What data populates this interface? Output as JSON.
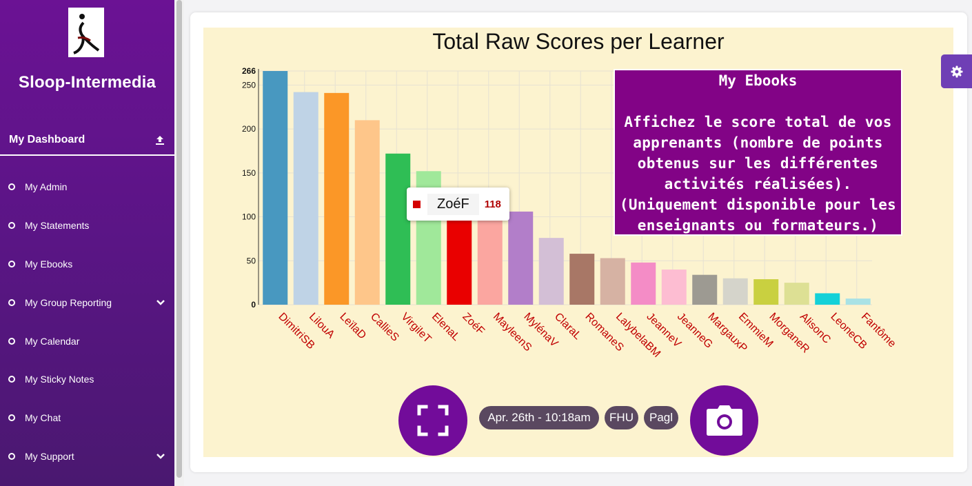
{
  "sidebar": {
    "brand": "Sloop-Intermedia",
    "dashboard_label": "My Dashboard",
    "items": [
      {
        "label": "My Admin",
        "chevron": false
      },
      {
        "label": "My Statements",
        "chevron": false
      },
      {
        "label": "My Ebooks",
        "chevron": false
      },
      {
        "label": "My Group Reporting",
        "chevron": true
      },
      {
        "label": "My Calendar",
        "chevron": false
      },
      {
        "label": "My Sticky Notes",
        "chevron": false
      },
      {
        "label": "My Chat",
        "chevron": false
      },
      {
        "label": "My Support",
        "chevron": true
      }
    ]
  },
  "info_panel": {
    "title": "My Ebooks",
    "body": "Affichez le score total de vos apprenants (nombre de points obtenus sur les différentes activités réalisées). (Uniquement disponible pour les enseignants ou formateurs.)"
  },
  "tooltip": {
    "name": "ZoéF",
    "value": "118",
    "color": "#d40000"
  },
  "controls": {
    "date": "Apr. 26th - 10:18am",
    "tag1": "FHU",
    "tag2": "Pagl"
  },
  "chart_data": {
    "type": "bar",
    "title": "Total Raw Scores per Learner",
    "xlabel": "",
    "ylabel": "",
    "ylim": [
      0,
      266
    ],
    "yticks": [
      0,
      50,
      100,
      150,
      200,
      250,
      266
    ],
    "grid": true,
    "categories": [
      "DimitriSB",
      "LilouA",
      "LeïlaD",
      "CallieS",
      "VirgileT",
      "ElenaL",
      "ZoéF",
      "MayleenS",
      "MylénaV",
      "ClaraL",
      "RomaneS",
      "LalybelaBM",
      "JeanneV",
      "JeanneG",
      "MargauxP",
      "EmmieM",
      "MorganeR",
      "AlisonC",
      "LeoneCB",
      "Fantôme"
    ],
    "values": [
      266,
      242,
      241,
      210,
      172,
      152,
      118,
      115,
      106,
      76,
      58,
      53,
      48,
      40,
      34,
      30,
      29,
      25,
      13,
      7
    ],
    "colors": [
      "#4898c0",
      "#bfd3e6",
      "#fb9727",
      "#fec68a",
      "#2fbe55",
      "#a0e89a",
      "#e90000",
      "#fba6a0",
      "#b27ec9",
      "#d3bfd6",
      "#a87766",
      "#d6b2a3",
      "#f48cc6",
      "#fdbdd2",
      "#9d9a92",
      "#d5d4cb",
      "#c9d040",
      "#dde094",
      "#14d1d8",
      "#a9e2e5"
    ]
  }
}
